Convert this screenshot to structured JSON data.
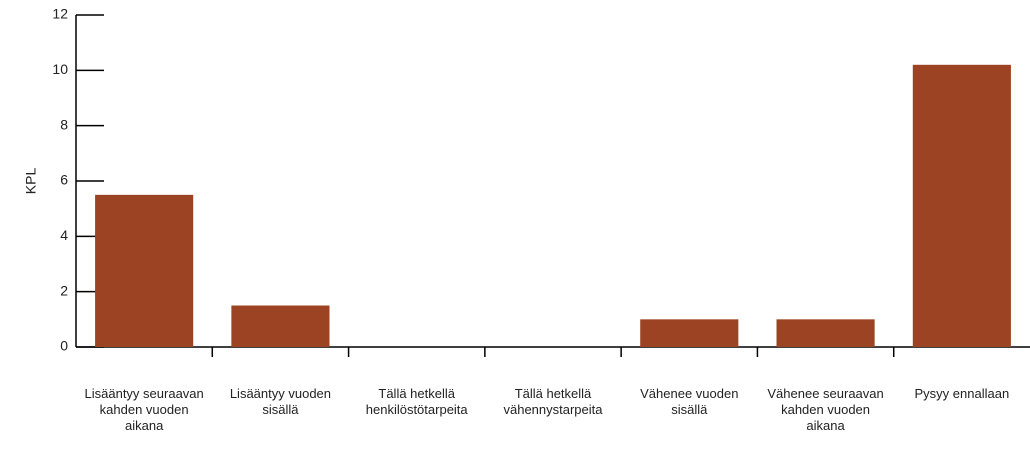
{
  "chart_data": {
    "type": "bar",
    "y_label": "KPL",
    "categories": [
      "Lisääntyy seuraavan kahden vuoden aikana",
      "Lisääntyy vuoden sisällä",
      "Tällä hetkellä henkilöstötarpeita",
      "Tällä hetkellä vähennystarpeita",
      "Vähenee vuoden sisällä",
      "Vähenee seuraavan kahden vuoden aikana",
      "Pysyy ennallaan"
    ],
    "values": [
      5.5,
      1.5,
      0,
      0,
      1,
      1,
      10.2
    ],
    "color": "#9c4323",
    "ylim": [
      0,
      12
    ],
    "yticks": [
      0,
      2,
      4,
      6,
      8,
      10,
      12
    ],
    "grid": false
  }
}
